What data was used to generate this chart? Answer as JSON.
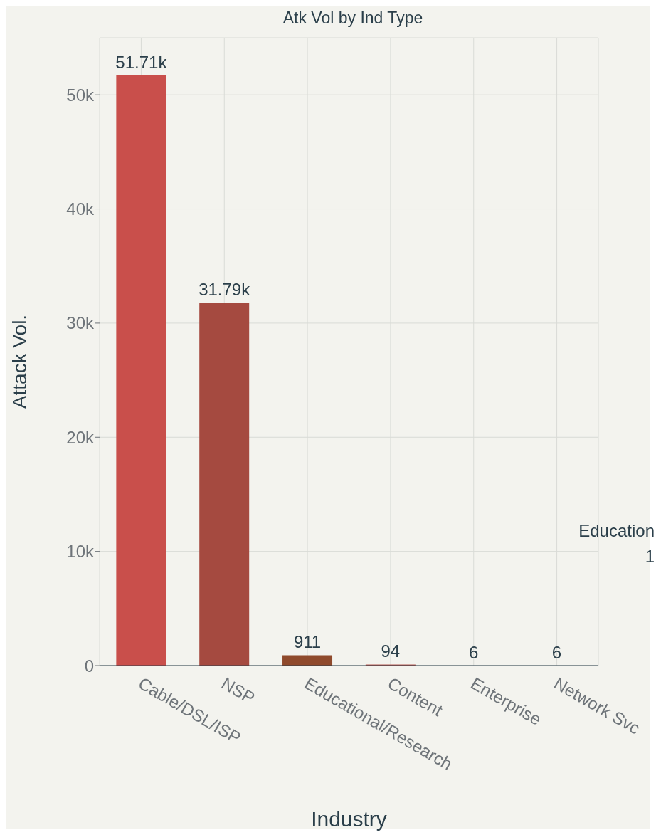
{
  "chart_data": {
    "type": "bar",
    "title": "Atk Vol by Ind Type",
    "xlabel": "Industry",
    "ylabel": "Attack Vol.",
    "categories": [
      "Cable/DSL/ISP",
      "NSP",
      "Educational/Research",
      "Content",
      "Enterprise",
      "Network Svc"
    ],
    "values": [
      51710,
      31790,
      911,
      94,
      6,
      6
    ],
    "colors": [
      "#c94f4b",
      "#a54a40",
      "#8f4a2c",
      "#b85a52",
      "#7a4a3a",
      "#6a4a40"
    ],
    "value_labels": [
      "51.71k",
      "31.79k",
      "911",
      "94",
      "6",
      "6"
    ],
    "ylim": [
      0,
      55000
    ],
    "yticks": [
      0,
      {
        "value": 10000,
        "label": "10k"
      },
      {
        "value": 20000,
        "label": "20k"
      },
      {
        "value": 30000,
        "label": "30k"
      },
      {
        "value": 40000,
        "label": "40k"
      },
      {
        "value": 50000,
        "label": "50k"
      }
    ],
    "grid": true,
    "annotations": [
      "Education",
      "1"
    ]
  }
}
